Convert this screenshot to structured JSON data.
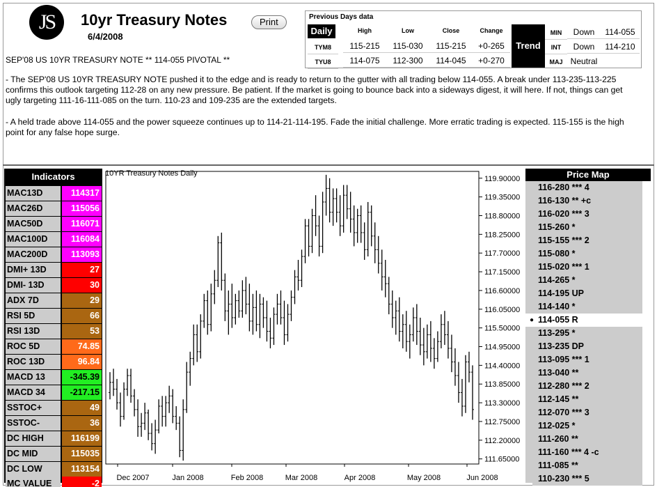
{
  "header": {
    "logo_text": "JS",
    "title": "10yr Treasury Notes",
    "print_label": "Print",
    "date": "6/4/2008",
    "headline": "SEP'08 US 10YR TREASURY NOTE ** 114-055 PIVOTAL **"
  },
  "commentary": {
    "p1": "- The SEP'08 US 10YR TREASURY NOTE pushed it to the edge and is ready to return to the gutter with all trading below 114-055. A break under 113-235-113-225 confirms this outlook targeting 112-28 on any new pressure. Be patient. If the market is going to bounce back into a sideways digest, it will here. If not, things can get ugly targeting 111-16-111-085 on the turn. 110-23 and 109-235 are the extended targets.",
    "p2": "- A held trade above 114-055 and the power squeeze continues up to 114-21-114-195. Fade the initial challenge. More erratic trading is expected. 115-155 is the high point for any false hope surge."
  },
  "previous_days": {
    "title": "Previous Days data",
    "daily_label": "Daily",
    "columns": [
      "High",
      "Low",
      "Close",
      "Change"
    ],
    "rows": [
      {
        "symbol": "TYM8",
        "high": "115-215",
        "low": "115-030",
        "close": "115-215",
        "change": "+0-265"
      },
      {
        "symbol": "TYU8",
        "high": "114-075",
        "low": "112-300",
        "close": "114-045",
        "change": "+0-270"
      }
    ],
    "trend_label": "Trend",
    "trend": [
      {
        "label": "MIN",
        "direction": "Down",
        "value": "114-055"
      },
      {
        "label": "INT",
        "direction": "Down",
        "value": "114-210"
      },
      {
        "label": "MAJ",
        "direction": "Neutral",
        "value": ""
      }
    ]
  },
  "indicators": {
    "title": "Indicators",
    "items": [
      {
        "name": "MAC13D",
        "value": "114317",
        "color": "#ff00ff"
      },
      {
        "name": "MAC26D",
        "value": "115056",
        "color": "#ff00ff"
      },
      {
        "name": "MAC50D",
        "value": "116071",
        "color": "#ff00ff"
      },
      {
        "name": "MAC100D",
        "value": "116084",
        "color": "#ff00ff"
      },
      {
        "name": "MAC200D",
        "value": "113093",
        "color": "#ff00ff"
      },
      {
        "name": "DMI+ 13D",
        "value": "27",
        "color": "#ff0000"
      },
      {
        "name": "DMI- 13D",
        "value": "30",
        "color": "#ff0000"
      },
      {
        "name": "ADX 7D",
        "value": "29",
        "color": "#aa6611"
      },
      {
        "name": "RSI 5D",
        "value": "66",
        "color": "#aa6611"
      },
      {
        "name": "RSI 13D",
        "value": "53",
        "color": "#aa6611"
      },
      {
        "name": "ROC 5D",
        "value": "74.85",
        "color": "#ff6a1a"
      },
      {
        "name": "ROC 13D",
        "value": "96.84",
        "color": "#ff6a1a"
      },
      {
        "name": "MACD 13",
        "value": "-345.39",
        "color": "#22ee22"
      },
      {
        "name": "MACD 34",
        "value": "-217.15",
        "color": "#22ee22"
      },
      {
        "name": "SSTOC+",
        "value": "49",
        "color": "#aa6611"
      },
      {
        "name": "SSTOC-",
        "value": "36",
        "color": "#aa6611"
      },
      {
        "name": "DC HIGH",
        "value": "116199",
        "color": "#aa6611"
      },
      {
        "name": "DC MID",
        "value": "115035",
        "color": "#aa6611"
      },
      {
        "name": "DC LOW",
        "value": "113154",
        "color": "#aa6611"
      },
      {
        "name": "MC VALUE",
        "value": "-2",
        "color": "#ff0000"
      }
    ]
  },
  "chart_data": {
    "type": "ohlc",
    "title": "10YR Treasury Notes Daily",
    "y_ticks": [
      "119.90000",
      "119.35000",
      "118.80000",
      "118.25000",
      "117.70000",
      "117.15000",
      "116.60000",
      "116.05000",
      "115.50000",
      "114.95000",
      "114.40000",
      "113.85000",
      "113.30000",
      "112.75000",
      "112.20000",
      "111.65000"
    ],
    "ylim": [
      111.5,
      120.1
    ],
    "x_labels": [
      "Dec 2007",
      "Jan 2008",
      "Feb 2008",
      "Mar 2008",
      "Apr 2008",
      "May 2008",
      "Jun 2008"
    ],
    "bars": [
      [
        113.6,
        114.2,
        113.4,
        113.9
      ],
      [
        113.9,
        114.3,
        113.5,
        113.7
      ],
      [
        113.7,
        114.0,
        113.1,
        113.3
      ],
      [
        113.3,
        113.6,
        112.6,
        112.9
      ],
      [
        112.9,
        113.9,
        112.8,
        113.7
      ],
      [
        113.7,
        114.3,
        113.5,
        114.1
      ],
      [
        114.1,
        114.3,
        113.3,
        113.5
      ],
      [
        113.5,
        113.7,
        112.9,
        113.1
      ],
      [
        113.1,
        113.4,
        112.3,
        112.6
      ],
      [
        112.6,
        113.0,
        112.3,
        112.7
      ],
      [
        112.7,
        113.3,
        112.5,
        113.0
      ],
      [
        113.0,
        113.1,
        112.2,
        112.4
      ],
      [
        112.4,
        112.7,
        111.9,
        112.1
      ],
      [
        112.1,
        112.8,
        111.8,
        112.5
      ],
      [
        112.5,
        113.4,
        112.4,
        113.2
      ],
      [
        113.2,
        113.5,
        112.6,
        112.9
      ],
      [
        112.9,
        113.5,
        112.6,
        113.3
      ],
      [
        113.3,
        113.8,
        113.0,
        113.5
      ],
      [
        113.5,
        113.7,
        112.7,
        112.9
      ],
      [
        112.9,
        113.2,
        112.5,
        112.7
      ],
      [
        112.7,
        112.9,
        111.7,
        111.9
      ],
      [
        111.9,
        113.4,
        111.6,
        113.1
      ],
      [
        113.1,
        114.5,
        113.0,
        114.2
      ],
      [
        114.2,
        114.8,
        113.8,
        114.6
      ],
      [
        114.6,
        115.6,
        114.4,
        115.3
      ],
      [
        115.3,
        115.6,
        114.5,
        114.8
      ],
      [
        114.8,
        115.9,
        114.6,
        115.7
      ],
      [
        115.7,
        116.5,
        115.5,
        116.3
      ],
      [
        116.3,
        116.6,
        115.3,
        115.6
      ],
      [
        115.6,
        116.8,
        115.4,
        116.5
      ],
      [
        116.5,
        117.2,
        116.2,
        116.9
      ],
      [
        116.9,
        118.2,
        116.7,
        118.0
      ],
      [
        118.0,
        118.3,
        116.6,
        116.9
      ],
      [
        116.9,
        117.1,
        115.7,
        116.0
      ],
      [
        116.0,
        116.6,
        115.3,
        116.2
      ],
      [
        116.2,
        116.8,
        115.5,
        115.8
      ],
      [
        115.8,
        116.5,
        115.6,
        116.3
      ],
      [
        116.3,
        116.6,
        115.8,
        116.0
      ],
      [
        116.0,
        116.9,
        115.8,
        116.6
      ],
      [
        116.6,
        117.0,
        115.9,
        116.2
      ],
      [
        116.2,
        116.8,
        115.4,
        115.7
      ],
      [
        115.7,
        116.5,
        115.3,
        116.1
      ],
      [
        116.1,
        116.6,
        115.4,
        115.6
      ],
      [
        115.6,
        116.5,
        115.2,
        116.2
      ],
      [
        116.2,
        116.4,
        115.5,
        115.8
      ],
      [
        115.8,
        116.3,
        115.1,
        115.4
      ],
      [
        115.4,
        115.8,
        114.9,
        115.2
      ],
      [
        115.2,
        116.1,
        115.0,
        115.9
      ],
      [
        115.9,
        116.5,
        115.6,
        116.2
      ],
      [
        116.2,
        116.6,
        115.6,
        115.8
      ],
      [
        115.8,
        116.3,
        115.0,
        115.3
      ],
      [
        115.3,
        116.2,
        115.1,
        115.9
      ],
      [
        115.9,
        116.6,
        115.7,
        116.4
      ],
      [
        116.4,
        117.2,
        116.2,
        117.0
      ],
      [
        117.0,
        117.5,
        116.6,
        116.9
      ],
      [
        116.9,
        117.8,
        116.7,
        117.6
      ],
      [
        117.6,
        118.7,
        117.4,
        118.5
      ],
      [
        118.5,
        118.7,
        117.6,
        117.9
      ],
      [
        117.9,
        119.0,
        117.7,
        118.8
      ],
      [
        118.8,
        119.4,
        118.2,
        118.5
      ],
      [
        118.5,
        118.8,
        117.6,
        117.9
      ],
      [
        117.9,
        119.5,
        117.7,
        119.2
      ],
      [
        119.2,
        120.0,
        118.8,
        119.6
      ],
      [
        119.6,
        119.9,
        118.6,
        118.9
      ],
      [
        118.9,
        119.6,
        118.5,
        119.3
      ],
      [
        119.3,
        119.6,
        118.6,
        118.9
      ],
      [
        118.9,
        119.4,
        118.2,
        118.5
      ],
      [
        118.5,
        119.7,
        118.3,
        119.4
      ],
      [
        119.4,
        119.7,
        118.7,
        119.0
      ],
      [
        119.0,
        119.5,
        118.3,
        118.7
      ],
      [
        118.7,
        119.1,
        117.9,
        118.3
      ],
      [
        118.3,
        119.0,
        118.0,
        118.8
      ],
      [
        118.8,
        119.1,
        118.0,
        118.3
      ],
      [
        118.3,
        118.6,
        117.5,
        117.8
      ],
      [
        117.8,
        119.2,
        117.6,
        118.9
      ],
      [
        118.9,
        119.1,
        117.9,
        118.2
      ],
      [
        118.2,
        118.6,
        117.4,
        117.8
      ],
      [
        117.8,
        118.2,
        117.1,
        117.4
      ],
      [
        117.4,
        117.8,
        116.6,
        117.0
      ],
      [
        117.0,
        117.5,
        116.4,
        116.8
      ],
      [
        116.8,
        117.0,
        115.9,
        116.2
      ],
      [
        116.2,
        116.6,
        115.5,
        115.8
      ],
      [
        115.8,
        116.3,
        115.3,
        116.0
      ],
      [
        116.0,
        116.4,
        115.1,
        115.4
      ],
      [
        115.4,
        115.9,
        114.9,
        115.6
      ],
      [
        115.6,
        116.0,
        114.8,
        115.1
      ],
      [
        115.1,
        115.6,
        114.6,
        115.3
      ],
      [
        115.3,
        116.1,
        115.1,
        115.8
      ],
      [
        115.8,
        116.2,
        115.0,
        115.4
      ],
      [
        115.4,
        115.8,
        114.7,
        115.0
      ],
      [
        115.0,
        115.5,
        114.4,
        114.8
      ],
      [
        114.8,
        115.6,
        114.6,
        115.3
      ],
      [
        115.3,
        115.7,
        114.5,
        114.9
      ],
      [
        114.9,
        115.2,
        114.3,
        114.6
      ],
      [
        114.6,
        115.4,
        114.5,
        115.1
      ],
      [
        115.1,
        115.9,
        114.9,
        115.6
      ],
      [
        115.6,
        116.0,
        115.0,
        115.3
      ],
      [
        115.3,
        115.7,
        114.6,
        114.9
      ],
      [
        114.9,
        115.3,
        114.2,
        114.5
      ],
      [
        114.5,
        114.9,
        113.8,
        114.1
      ],
      [
        114.1,
        114.5,
        113.3,
        113.6
      ],
      [
        113.6,
        114.0,
        112.9,
        113.2
      ],
      [
        113.2,
        114.7,
        113.0,
        114.5
      ],
      [
        114.5,
        114.8,
        113.9,
        114.2
      ],
      [
        114.2,
        114.4,
        112.8,
        113.1
      ]
    ]
  },
  "price_map": {
    "title": "Price Map",
    "items": [
      {
        "label": "116-280 *** 4",
        "active": false
      },
      {
        "label": "116-130 ** +c",
        "active": false
      },
      {
        "label": "116-020 *** 3",
        "active": false
      },
      {
        "label": "115-260 *",
        "active": false
      },
      {
        "label": "115-155 *** 2",
        "active": false
      },
      {
        "label": "115-080 *",
        "active": false
      },
      {
        "label": "115-020 *** 1",
        "active": false
      },
      {
        "label": "114-265 *",
        "active": false
      },
      {
        "label": "114-195 UP",
        "active": false
      },
      {
        "label": "114-140 *",
        "active": false
      },
      {
        "label": "114-055 R",
        "active": true
      },
      {
        "label": "113-295 *",
        "active": false
      },
      {
        "label": "113-235 DP",
        "active": false
      },
      {
        "label": "113-095 *** 1",
        "active": false
      },
      {
        "label": "113-040 **",
        "active": false
      },
      {
        "label": "112-280 *** 2",
        "active": false
      },
      {
        "label": "112-145 **",
        "active": false
      },
      {
        "label": "112-070 *** 3",
        "active": false
      },
      {
        "label": "112-025 *",
        "active": false
      },
      {
        "label": "111-260 **",
        "active": false
      },
      {
        "label": "111-160 *** 4 -c",
        "active": false
      },
      {
        "label": "111-085 **",
        "active": false
      },
      {
        "label": "110-230 *** 5",
        "active": false
      }
    ]
  }
}
